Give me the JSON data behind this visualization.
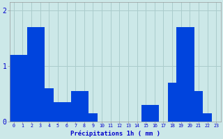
{
  "precip": [
    1.2,
    1.2,
    1.7,
    1.7,
    0.6,
    0.35,
    0.35,
    0.55,
    0.55,
    0.15,
    0.0,
    0.0,
    0.0,
    0.0,
    0.0,
    0.3,
    0.3,
    0.0,
    0.7,
    1.7,
    1.7,
    0.55,
    0.15,
    0.0
  ],
  "hours": [
    0,
    1,
    2,
    3,
    4,
    5,
    6,
    7,
    8,
    9,
    10,
    11,
    12,
    13,
    14,
    15,
    16,
    17,
    18,
    19,
    20,
    21,
    22,
    23
  ],
  "bar_color": "#0044dd",
  "bg_color": "#cce8e8",
  "grid_color": "#aacccc",
  "axis_color": "#0000cc",
  "xlabel": "Précipitations 1h ( mm )",
  "ylim": [
    0,
    2.15
  ],
  "yticks": [
    0,
    1,
    2
  ],
  "ytick_labels": [
    "0",
    "1",
    "2"
  ]
}
